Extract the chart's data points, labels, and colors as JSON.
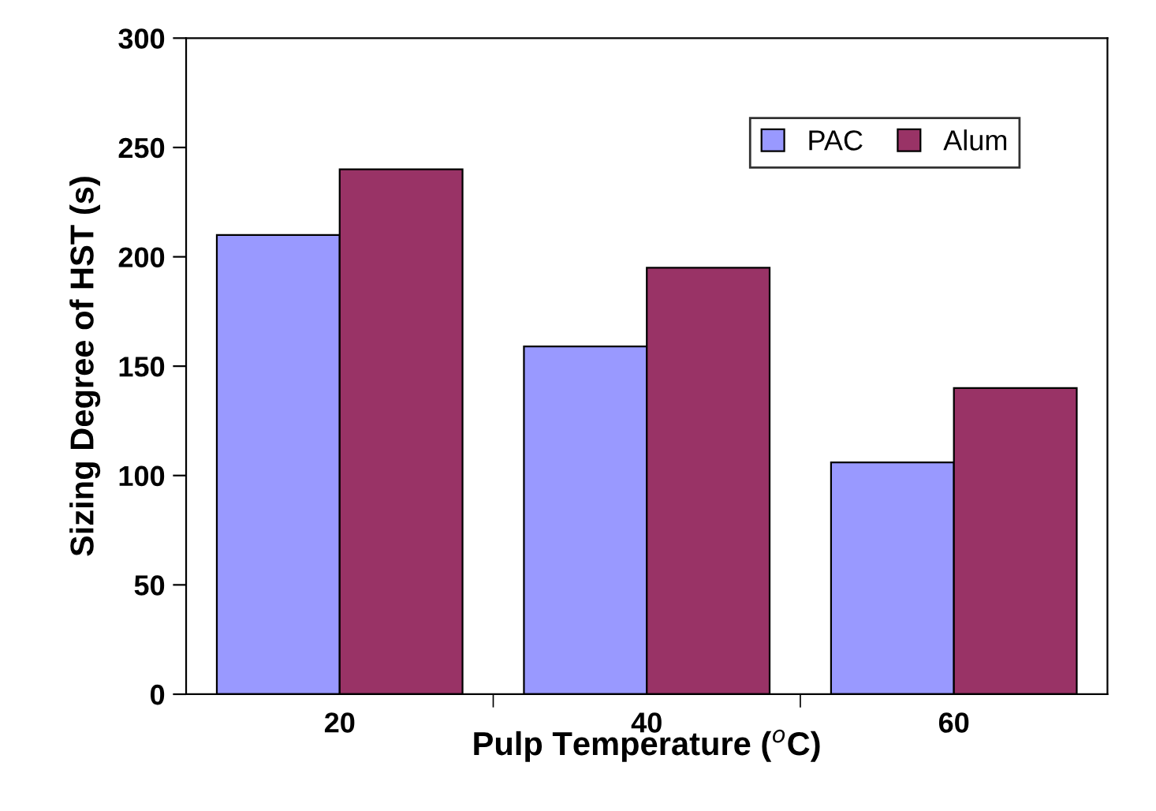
{
  "chart_data": {
    "type": "bar",
    "xlabel": "Pulp Temperature ($^{o}$C)",
    "ylabel": "Sizing Degree of HST (s)",
    "categories": [
      "20",
      "40",
      "60"
    ],
    "series": [
      {
        "name": "PAC",
        "color": "#9999ff",
        "values": [
          210,
          159,
          106
        ]
      },
      {
        "name": "Alum",
        "color": "#993366",
        "values": [
          240,
          195,
          140
        ]
      }
    ],
    "ylim": [
      0,
      300
    ],
    "yticks": [
      0,
      50,
      100,
      150,
      200,
      250,
      300
    ],
    "grid": false,
    "legend": "top right"
  }
}
